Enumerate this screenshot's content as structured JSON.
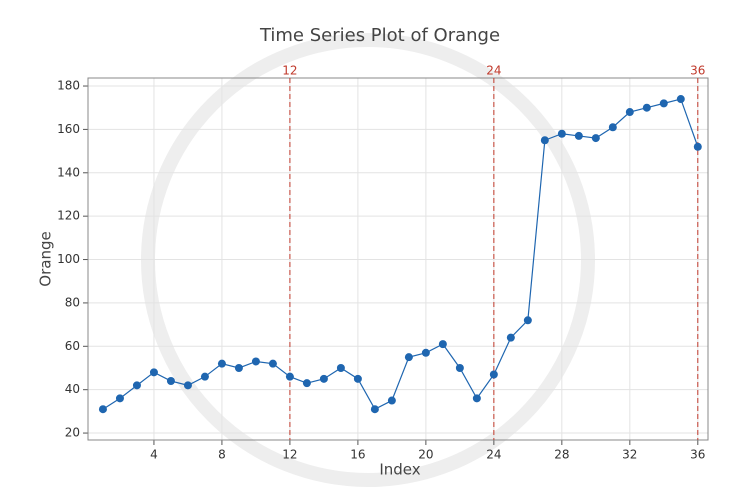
{
  "chart_data": {
    "type": "line",
    "title": "Time Series Plot of Orange",
    "x_label": "Index",
    "y_label": "Orange",
    "x": [
      1,
      2,
      3,
      4,
      5,
      6,
      7,
      8,
      9,
      10,
      11,
      12,
      13,
      14,
      15,
      16,
      17,
      18,
      19,
      20,
      21,
      22,
      23,
      24,
      25,
      26,
      27,
      28,
      29,
      30,
      31,
      32,
      33,
      34,
      35,
      36
    ],
    "series": [
      {
        "name": "Orange",
        "color": "#1f66b0",
        "values": [
          31,
          36,
          42,
          48,
          44,
          42,
          46,
          52,
          50,
          53,
          52,
          46,
          43,
          45,
          50,
          45,
          31,
          35,
          55,
          57,
          61,
          50,
          36,
          47,
          64,
          72,
          155,
          158,
          157,
          156,
          161,
          168,
          170,
          172,
          174,
          152
        ]
      }
    ],
    "xlim": [
      0.12,
      36.6
    ],
    "ylim": [
      16.8,
      183.7
    ],
    "xticks": [
      4,
      8,
      12,
      16,
      20,
      24,
      28,
      32,
      36
    ],
    "yticks": [
      20,
      40,
      60,
      80,
      100,
      120,
      140,
      160,
      180
    ],
    "reference_lines": {
      "color": "#c0392b",
      "x": [
        12,
        24,
        36
      ]
    },
    "grid": true
  }
}
